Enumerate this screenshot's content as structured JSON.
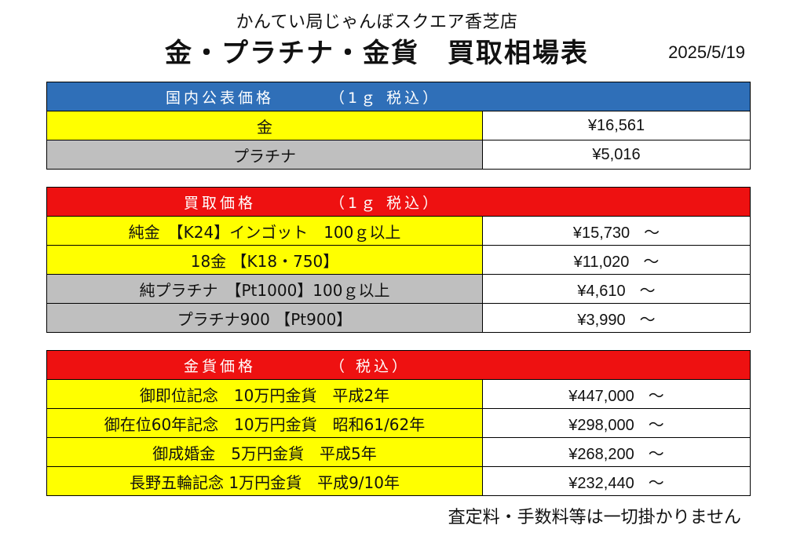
{
  "header": {
    "store": "かんてい局じゃんぼスクエア香芝店",
    "title": "金・プラチナ・金貨　買取相場表",
    "date": "2025/5/19"
  },
  "domestic": {
    "heading": "国内公表価格",
    "note": "（1ｇ 税込）",
    "rows": [
      {
        "label": "金",
        "value": "¥16,561",
        "suffix": ""
      },
      {
        "label": "プラチナ",
        "value": "¥5,016",
        "suffix": ""
      }
    ]
  },
  "purchase": {
    "heading": "買取価格",
    "note": "（1ｇ 税込）",
    "rows": [
      {
        "label": "純金　【K24】インゴット　100ｇ以上",
        "value": "¥15,730",
        "suffix": "～"
      },
      {
        "label": "18金 【K18・750】",
        "value": "¥11,020",
        "suffix": "～"
      },
      {
        "label": "純プラチナ　【Pt1000】100ｇ以上",
        "value": "¥4,610",
        "suffix": "～"
      },
      {
        "label": "プラチナ900 【Pt900】",
        "value": "¥3,990",
        "suffix": "～"
      }
    ]
  },
  "coins": {
    "heading": "金貨価格",
    "note": "（ 税込）",
    "rows": [
      {
        "label": "御即位記念　10万円金貨　平成2年",
        "value": "¥447,000",
        "suffix": "～"
      },
      {
        "label": "御在位60年記念　10万円金貨　昭和61/62年",
        "value": "¥298,000",
        "suffix": "～"
      },
      {
        "label": "御成婚金　5万円金貨　平成5年",
        "value": "¥268,200",
        "suffix": "～"
      },
      {
        "label": "長野五輪記念 1万円金貨　平成9/10年",
        "value": "¥232,440",
        "suffix": "～"
      }
    ]
  },
  "footer": {
    "note": "査定料・手数料等は一切掛かりません"
  },
  "colors": {
    "blue_header": "#2f6fb8",
    "red_header": "#ee1111",
    "yellow_cell": "#ffff00",
    "gray_cell": "#bfbfbf"
  }
}
